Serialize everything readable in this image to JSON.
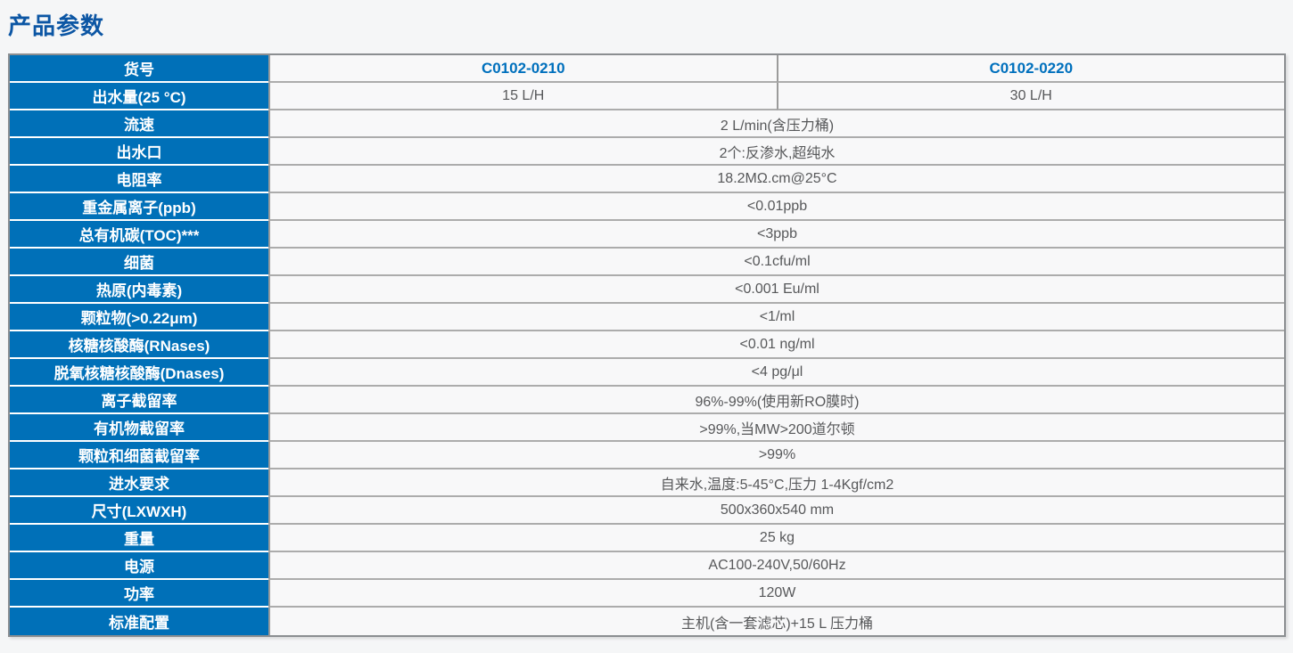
{
  "page": {
    "title": "产品参数"
  },
  "colors": {
    "title_blue": "#0c56a4",
    "header_cell_blue": "#0070b8",
    "model_number_blue": "#0070bd",
    "value_text_gray": "#57585a",
    "value_cell_bg": "#f8f8f9",
    "page_bg": "#f5f6f7",
    "outer_border_gray": "#8b8e91"
  },
  "table": {
    "rows": [
      {
        "label": "货号",
        "values": [
          "C0102-0210",
          "C0102-0220"
        ]
      },
      {
        "label": "出水量(25 °C)",
        "values": [
          "15 L/H",
          "30 L/H"
        ]
      },
      {
        "label": "流速",
        "value": "2 L/min(含压力桶)"
      },
      {
        "label": "出水口",
        "value": "2个:反渗水,超纯水"
      },
      {
        "label": "电阻率",
        "value": "18.2MΩ.cm@25°C"
      },
      {
        "label": "重金属离子(ppb)",
        "value": "<0.01ppb"
      },
      {
        "label": "总有机碳(TOC)***",
        "value": "<3ppb"
      },
      {
        "label": "细菌",
        "value": "<0.1cfu/ml"
      },
      {
        "label": "热原(内毒素)",
        "value": "<0.001 Eu/ml"
      },
      {
        "label": "颗粒物(>0.22μm)",
        "value": "<1/ml"
      },
      {
        "label": "核糖核酸酶(RNases)",
        "value": "<0.01 ng/ml"
      },
      {
        "label": "脱氧核糖核酸酶(Dnases)",
        "value": "<4 pg/μl"
      },
      {
        "label": "离子截留率",
        "value": "96%-99%(使用新RO膜时)"
      },
      {
        "label": "有机物截留率",
        "value": ">99%,当MW>200道尔顿"
      },
      {
        "label": "颗粒和细菌截留率",
        "value": ">99%"
      },
      {
        "label": "进水要求",
        "value": "自来水,温度:5-45°C,压力 1-4Kgf/cm2"
      },
      {
        "label": "尺寸(LXWXH)",
        "value": "500x360x540 mm"
      },
      {
        "label": "重量",
        "value": "25 kg"
      },
      {
        "label": "电源",
        "value": "AC100-240V,50/60Hz"
      },
      {
        "label": "功率",
        "value": "120W"
      },
      {
        "label": "标准配置",
        "value": "主机(含一套滤芯)+15 L 压力桶"
      }
    ]
  }
}
